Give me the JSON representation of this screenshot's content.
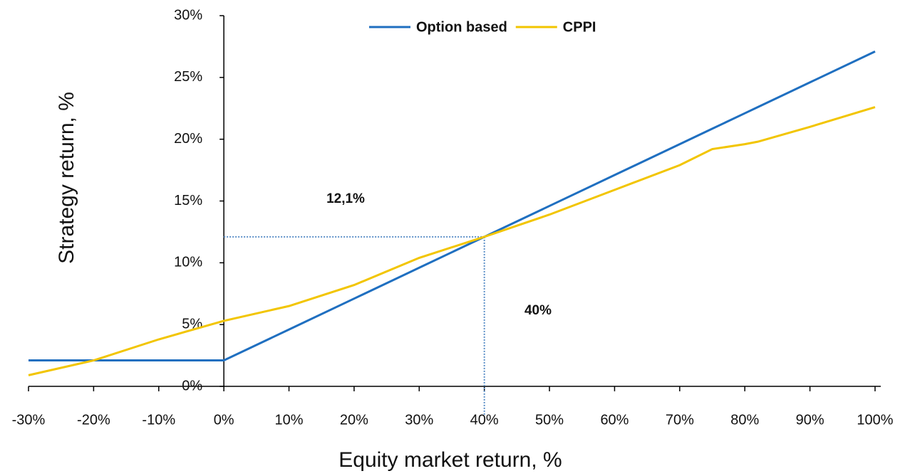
{
  "chart_data": {
    "type": "line",
    "xlabel": "Equity market return, %",
    "ylabel": "Strategy return, %",
    "x": [
      -30,
      -20,
      -10,
      0,
      10,
      20,
      30,
      40,
      50,
      60,
      70,
      75,
      80,
      82,
      90,
      100
    ],
    "series": [
      {
        "name": "Option based",
        "color": "#1f6fc0",
        "values": [
          2.1,
          2.1,
          2.1,
          2.1,
          4.6,
          7.1,
          9.6,
          12.1,
          14.6,
          17.1,
          19.6,
          20.85,
          22.1,
          22.6,
          24.6,
          27.1
        ]
      },
      {
        "name": "CPPI",
        "color": "#f2c500",
        "values": [
          0.9,
          2.1,
          3.8,
          5.3,
          6.5,
          8.2,
          10.4,
          12.1,
          13.9,
          15.9,
          17.9,
          19.2,
          19.6,
          19.8,
          21.0,
          22.6
        ]
      }
    ],
    "xlim": [
      -30,
      100
    ],
    "ylim": [
      0,
      30
    ],
    "xticks": [
      {
        "value": -30,
        "label": "-30%"
      },
      {
        "value": -20,
        "label": "-20%"
      },
      {
        "value": -10,
        "label": "-10%"
      },
      {
        "value": 0,
        "label": "0%"
      },
      {
        "value": 10,
        "label": "10%"
      },
      {
        "value": 20,
        "label": "20%"
      },
      {
        "value": 30,
        "label": "30%"
      },
      {
        "value": 40,
        "label": "40%"
      },
      {
        "value": 50,
        "label": "50%"
      },
      {
        "value": 60,
        "label": "60%"
      },
      {
        "value": 70,
        "label": "70%"
      },
      {
        "value": 80,
        "label": "80%"
      },
      {
        "value": 90,
        "label": "90%"
      },
      {
        "value": 100,
        "label": "100%"
      }
    ],
    "yticks": [
      {
        "value": 0,
        "label": "0%"
      },
      {
        "value": 5,
        "label": "5%"
      },
      {
        "value": 10,
        "label": "10%"
      },
      {
        "value": 15,
        "label": "15%"
      },
      {
        "value": 20,
        "label": "20%"
      },
      {
        "value": 25,
        "label": "25%"
      },
      {
        "value": 30,
        "label": "30%"
      }
    ],
    "crossover": {
      "x": 40,
      "y": 12.1
    },
    "annotations": [
      "12,1%",
      "40%"
    ],
    "legend": "top"
  }
}
